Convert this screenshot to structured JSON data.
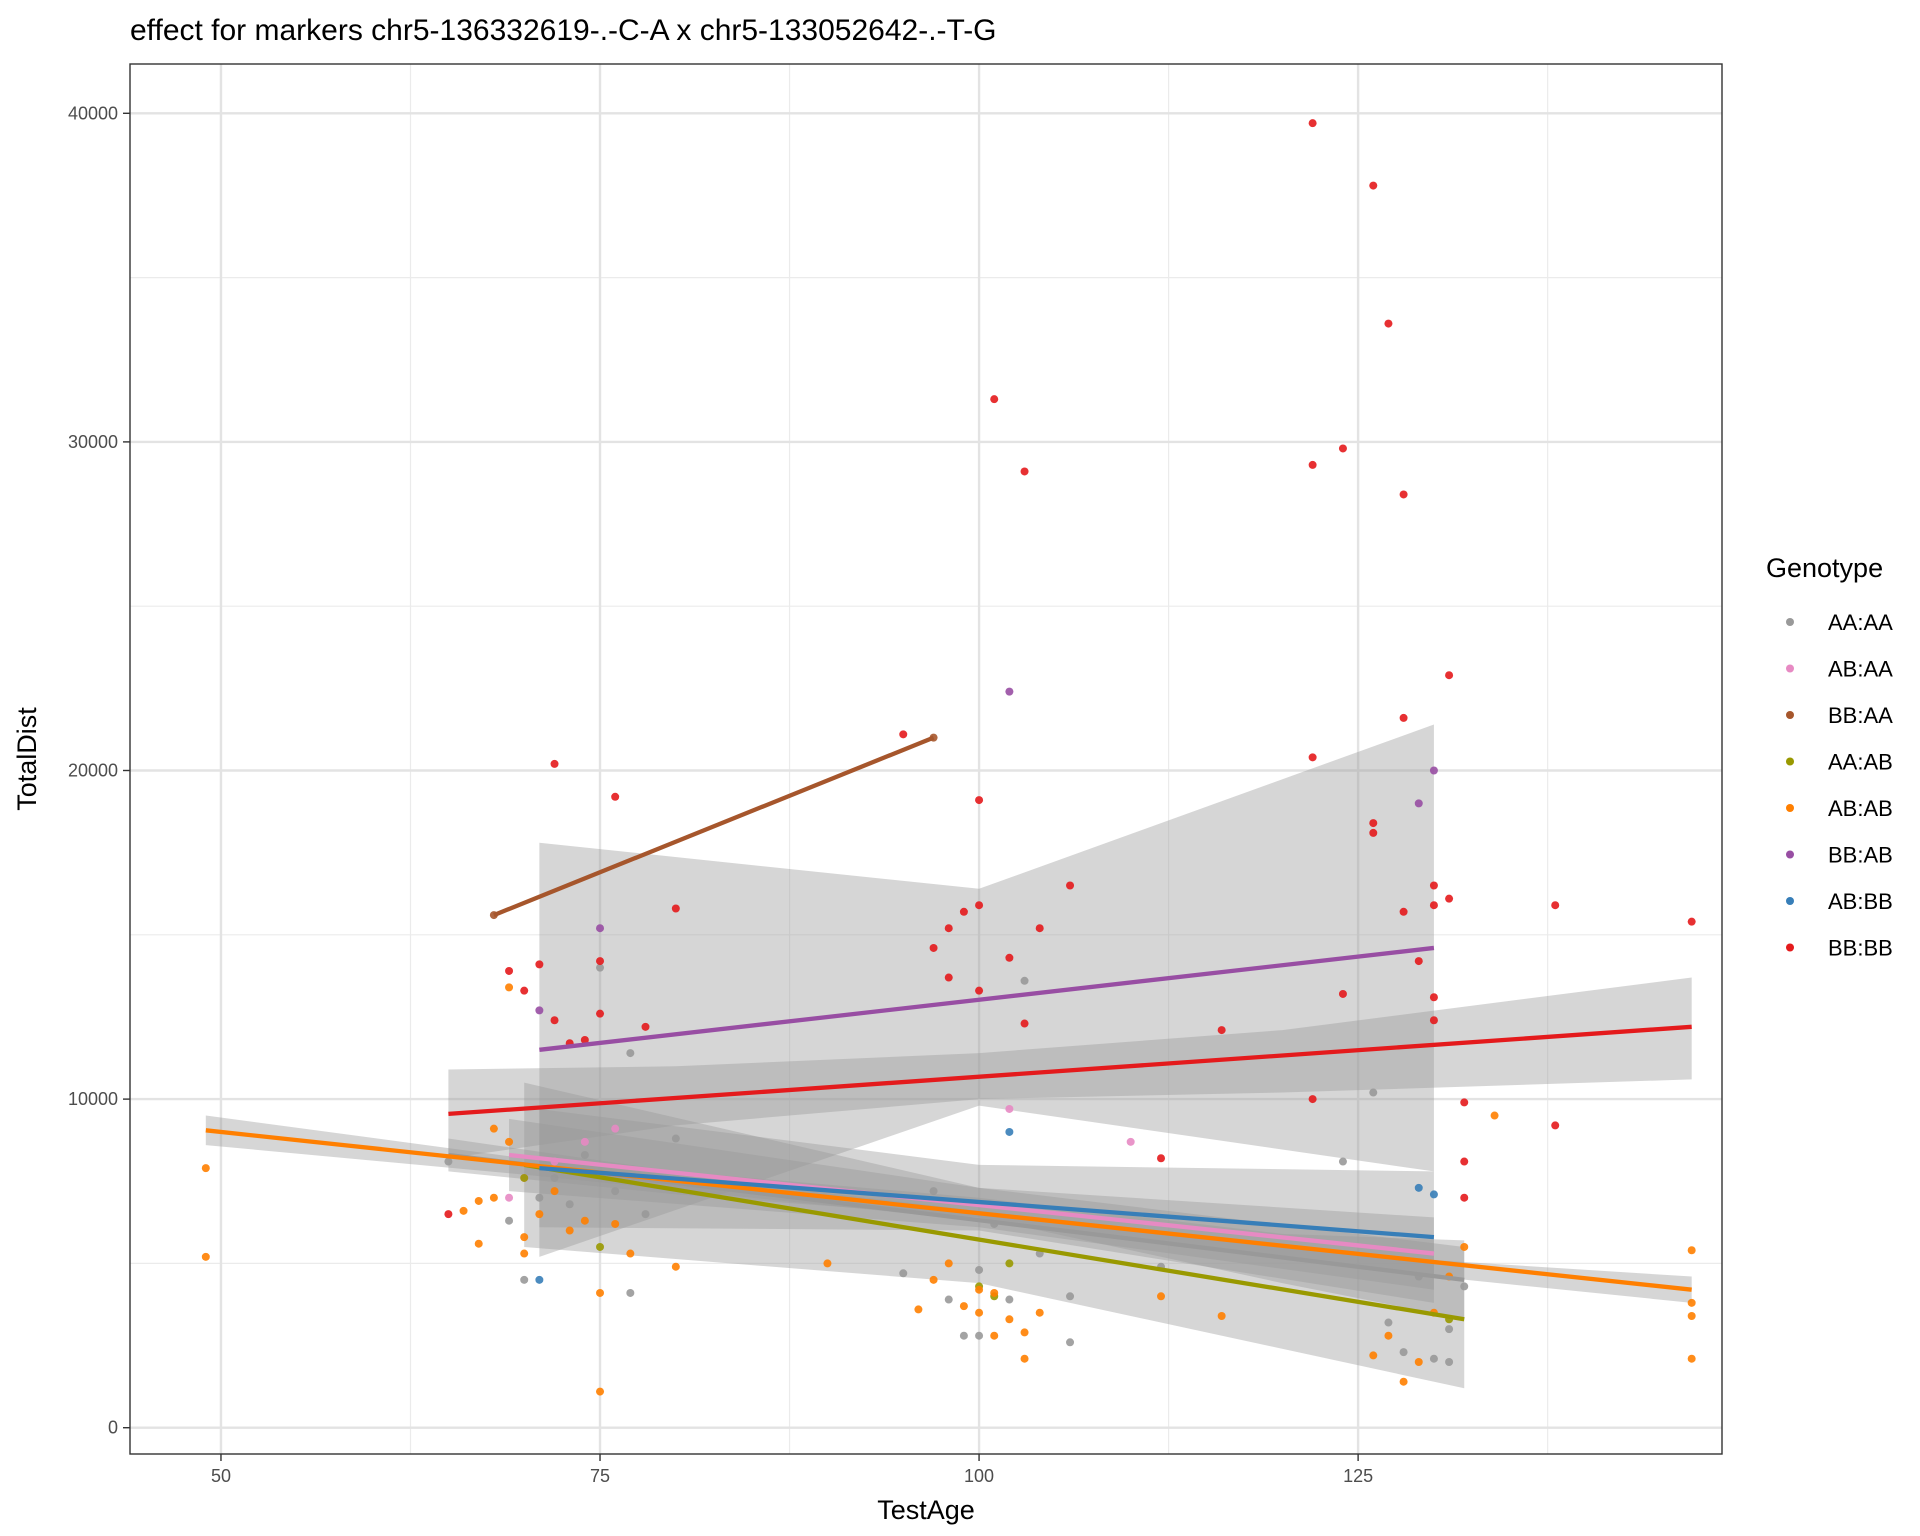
{
  "chart_data": {
    "type": "scatter",
    "title": "effect for markers chr5-136332619-.-C-A x chr5-133052642-.-T-G",
    "xlabel": "TestAge",
    "ylabel": "TotalDist",
    "xlim": [
      44,
      149
    ],
    "ylim": [
      -800,
      41500
    ],
    "x_ticks": [
      50,
      75,
      100,
      125
    ],
    "x_tick_labels": [
      "50",
      "75",
      "100",
      "125"
    ],
    "x_minor": [
      62.5,
      87.5,
      112.5,
      137.5
    ],
    "y_ticks": [
      0,
      10000,
      20000,
      30000,
      40000
    ],
    "y_tick_labels": [
      "0",
      "10000",
      "20000",
      "30000",
      "40000"
    ],
    "y_minor": [
      5000,
      15000,
      25000,
      35000
    ],
    "grid": true,
    "legend": {
      "title": "Genotype",
      "position": "right"
    },
    "series": [
      {
        "name": "AA:AA",
        "color": "#999999",
        "points": [
          [
            65,
            8100
          ],
          [
            69,
            6300
          ],
          [
            70,
            4500
          ],
          [
            71,
            7000
          ],
          [
            72,
            7600
          ],
          [
            73,
            6800
          ],
          [
            74,
            8300
          ],
          [
            75,
            14000
          ],
          [
            76,
            7200
          ],
          [
            77,
            11400
          ],
          [
            77,
            4100
          ],
          [
            78,
            6500
          ],
          [
            80,
            8800
          ],
          [
            95,
            4700
          ],
          [
            97,
            7200
          ],
          [
            98,
            3900
          ],
          [
            99,
            2800
          ],
          [
            100,
            2800
          ],
          [
            100,
            4800
          ],
          [
            101,
            6200
          ],
          [
            102,
            3900
          ],
          [
            103,
            13600
          ],
          [
            104,
            5300
          ],
          [
            106,
            2600
          ],
          [
            106,
            4000
          ],
          [
            112,
            4900
          ],
          [
            124,
            8100
          ],
          [
            126,
            10200
          ],
          [
            127,
            3200
          ],
          [
            128,
            2300
          ],
          [
            129,
            4600
          ],
          [
            130,
            2100
          ],
          [
            131,
            3000
          ],
          [
            131,
            2000
          ],
          [
            132,
            4300
          ]
        ],
        "fit": {
          "x": [
            65,
            132
          ],
          "y": [
            8300,
            4500
          ],
          "band": [
            [
              65,
              8800,
              7800
            ],
            [
              80,
              7800,
              7100
            ],
            [
              100,
              7000,
              6400
            ],
            [
              120,
              5900,
              4400
            ],
            [
              132,
              5700,
              3300
            ]
          ]
        }
      },
      {
        "name": "AB:AA",
        "color": "#e78ac3",
        "points": [
          [
            69,
            7000
          ],
          [
            70,
            7600
          ],
          [
            72,
            8100
          ],
          [
            74,
            8700
          ],
          [
            76,
            9100
          ],
          [
            102,
            9700
          ],
          [
            110,
            8700
          ]
        ],
        "fit": {
          "x": [
            69,
            130
          ],
          "y": [
            8300,
            5300
          ],
          "band": [
            [
              69,
              9400,
              7200
            ],
            [
              100,
              7300,
              6100
            ],
            [
              130,
              6400,
              4200
            ]
          ]
        }
      },
      {
        "name": "BB:AA",
        "color": "#a6562c",
        "points": [
          [
            68,
            15600
          ],
          [
            97,
            21000
          ]
        ],
        "fit": {
          "x": [
            68,
            97
          ],
          "y": [
            15600,
            21000
          ]
        }
      },
      {
        "name": "AA:AB",
        "color": "#999900",
        "points": [
          [
            70,
            7600
          ],
          [
            75,
            5500
          ],
          [
            100,
            4300
          ],
          [
            101,
            4000
          ],
          [
            102,
            5000
          ],
          [
            131,
            3300
          ]
        ],
        "fit": {
          "x": [
            70,
            132
          ],
          "y": [
            8000,
            3300
          ],
          "band": [
            [
              70,
              10500,
              5500
            ],
            [
              100,
              7300,
              4400
            ],
            [
              132,
              5500,
              1200
            ]
          ]
        }
      },
      {
        "name": "AB:AB",
        "color": "#ff7f00",
        "points": [
          [
            49,
            7900
          ],
          [
            49,
            5200
          ],
          [
            66,
            6600
          ],
          [
            67,
            6900
          ],
          [
            67,
            5600
          ],
          [
            68,
            7000
          ],
          [
            68,
            9100
          ],
          [
            69,
            13400
          ],
          [
            69,
            8700
          ],
          [
            70,
            5300
          ],
          [
            70,
            5800
          ],
          [
            71,
            6500
          ],
          [
            72,
            7200
          ],
          [
            73,
            6000
          ],
          [
            74,
            6300
          ],
          [
            75,
            4100
          ],
          [
            75,
            1100
          ],
          [
            76,
            6200
          ],
          [
            77,
            5300
          ],
          [
            80,
            4900
          ],
          [
            90,
            5000
          ],
          [
            96,
            3600
          ],
          [
            97,
            4500
          ],
          [
            98,
            5000
          ],
          [
            99,
            3700
          ],
          [
            100,
            3500
          ],
          [
            100,
            4200
          ],
          [
            101,
            2800
          ],
          [
            101,
            4100
          ],
          [
            102,
            3300
          ],
          [
            103,
            2100
          ],
          [
            103,
            2900
          ],
          [
            104,
            3500
          ],
          [
            112,
            4000
          ],
          [
            116,
            3400
          ],
          [
            126,
            2200
          ],
          [
            127,
            2800
          ],
          [
            128,
            1400
          ],
          [
            129,
            2000
          ],
          [
            130,
            3500
          ],
          [
            131,
            4600
          ],
          [
            132,
            5500
          ],
          [
            134,
            9500
          ],
          [
            147,
            5400
          ],
          [
            147,
            3800
          ],
          [
            147,
            3400
          ],
          [
            147,
            2100
          ]
        ],
        "fit": {
          "x": [
            49,
            147
          ],
          "y": [
            9050,
            4200
          ],
          "band": [
            [
              49,
              9500,
              8600
            ],
            [
              70,
              8200,
              7700
            ],
            [
              100,
              6600,
              6300
            ],
            [
              130,
              5100,
              4600
            ],
            [
              147,
              4600,
              3800
            ]
          ]
        }
      },
      {
        "name": "BB:AB",
        "color": "#984ea3",
        "points": [
          [
            71,
            12700
          ],
          [
            75,
            15200
          ],
          [
            102,
            22400
          ],
          [
            129,
            19000
          ],
          [
            130,
            20000
          ]
        ],
        "fit": {
          "x": [
            71,
            130
          ],
          "y": [
            11500,
            14600
          ],
          "band": [
            [
              71,
              17800,
              5200
            ],
            [
              100,
              16400,
              9800
            ],
            [
              130,
              21400,
              7800
            ]
          ]
        }
      },
      {
        "name": "AB:BB",
        "color": "#377eb8",
        "points": [
          [
            71,
            4500
          ],
          [
            102,
            9000
          ],
          [
            129,
            7300
          ],
          [
            130,
            7100
          ]
        ],
        "fit": {
          "x": [
            71,
            130
          ],
          "y": [
            7900,
            5800
          ],
          "band": [
            [
              71,
              9700,
              6100
            ],
            [
              100,
              8000,
              6000
            ],
            [
              130,
              7800,
              3800
            ]
          ]
        }
      },
      {
        "name": "BB:BB",
        "color": "#e41a1c",
        "points": [
          [
            65,
            6500
          ],
          [
            69,
            13900
          ],
          [
            70,
            13300
          ],
          [
            71,
            14100
          ],
          [
            72,
            20200
          ],
          [
            72,
            12400
          ],
          [
            73,
            11700
          ],
          [
            74,
            11800
          ],
          [
            75,
            14200
          ],
          [
            75,
            12600
          ],
          [
            76,
            19200
          ],
          [
            78,
            12200
          ],
          [
            80,
            15800
          ],
          [
            95,
            21100
          ],
          [
            97,
            14600
          ],
          [
            98,
            15200
          ],
          [
            98,
            13700
          ],
          [
            99,
            15700
          ],
          [
            100,
            19100
          ],
          [
            100,
            15900
          ],
          [
            100,
            13300
          ],
          [
            101,
            31300
          ],
          [
            102,
            14300
          ],
          [
            103,
            29100
          ],
          [
            103,
            12300
          ],
          [
            104,
            15200
          ],
          [
            106,
            16500
          ],
          [
            112,
            8200
          ],
          [
            116,
            12100
          ],
          [
            122,
            39700
          ],
          [
            122,
            29300
          ],
          [
            122,
            20400
          ],
          [
            122,
            10000
          ],
          [
            124,
            29800
          ],
          [
            124,
            13200
          ],
          [
            126,
            37800
          ],
          [
            126,
            18400
          ],
          [
            126,
            18100
          ],
          [
            127,
            33600
          ],
          [
            128,
            28400
          ],
          [
            128,
            21600
          ],
          [
            128,
            15700
          ],
          [
            129,
            14200
          ],
          [
            130,
            16500
          ],
          [
            130,
            15900
          ],
          [
            130,
            13100
          ],
          [
            130,
            12400
          ],
          [
            131,
            22900
          ],
          [
            131,
            16100
          ],
          [
            132,
            9900
          ],
          [
            132,
            8100
          ],
          [
            132,
            7000
          ],
          [
            138,
            15900
          ],
          [
            138,
            9200
          ],
          [
            147,
            15400
          ]
        ],
        "fit": {
          "x": [
            65,
            147
          ],
          "y": [
            9550,
            12200
          ],
          "band": [
            [
              65,
              10900,
              8200
            ],
            [
              80,
              11000,
              9200
            ],
            [
              100,
              11400,
              10000
            ],
            [
              120,
              12100,
              10200
            ],
            [
              147,
              13700,
              10600
            ]
          ]
        }
      }
    ]
  }
}
